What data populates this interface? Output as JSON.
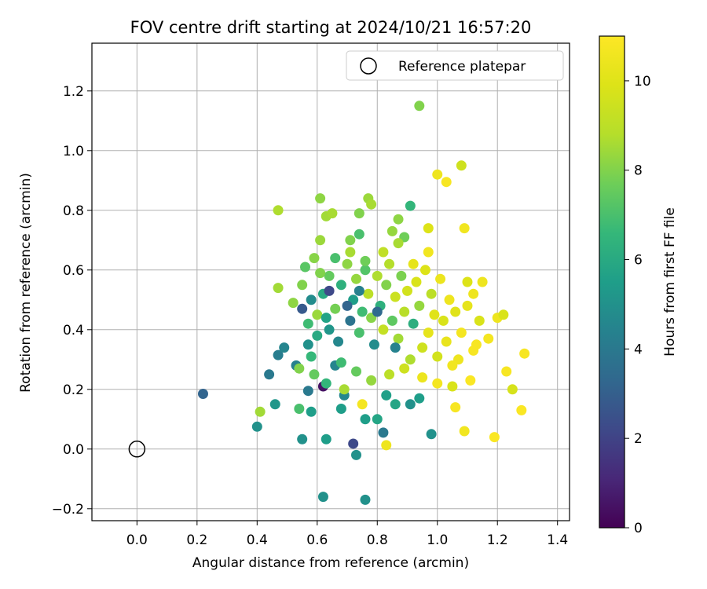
{
  "chart_data": {
    "type": "scatter",
    "title": "FOV centre drift starting at 2024/10/21 16:57:20",
    "xlabel": "Angular distance from reference (arcmin)",
    "ylabel": "Rotation from reference (arcmin)",
    "xlim": [
      -0.15,
      1.44
    ],
    "ylim": [
      -0.24,
      1.36
    ],
    "xticks": [
      0.0,
      0.2,
      0.4,
      0.6,
      0.8,
      1.0,
      1.2,
      1.4
    ],
    "yticks": [
      -0.2,
      0.0,
      0.2,
      0.4,
      0.6,
      0.8,
      1.0,
      1.2
    ],
    "xtick_labels": [
      "0.0",
      "0.2",
      "0.4",
      "0.6",
      "0.8",
      "1.0",
      "1.2",
      "1.4"
    ],
    "ytick_labels": [
      "−0.2",
      "0.0",
      "0.2",
      "0.4",
      "0.6",
      "0.8",
      "1.0",
      "1.2"
    ],
    "grid": true,
    "legend": {
      "position": "top-right",
      "entries": [
        "Reference platepar"
      ]
    },
    "reference_point": {
      "x": 0.0,
      "y": 0.0,
      "label": "Reference platepar"
    },
    "colorbar": {
      "label": "Hours from first FF file",
      "range": [
        0,
        11
      ],
      "ticks": [
        0,
        2,
        4,
        6,
        8,
        10
      ],
      "colormap": "viridis"
    },
    "series": [
      {
        "points": [
          [
            0.22,
            0.185,
            3.2
          ],
          [
            0.4,
            0.075,
            5.0
          ],
          [
            0.41,
            0.125,
            8.5
          ],
          [
            0.44,
            0.25,
            4.0
          ],
          [
            0.46,
            0.15,
            5.2
          ],
          [
            0.47,
            0.315,
            4.2
          ],
          [
            0.49,
            0.34,
            4.5
          ],
          [
            0.47,
            0.54,
            8.5
          ],
          [
            0.47,
            0.8,
            8.7
          ],
          [
            0.53,
            0.28,
            4.3
          ],
          [
            0.54,
            0.135,
            7.0
          ],
          [
            0.54,
            0.27,
            8.0
          ],
          [
            0.55,
            0.033,
            5.0
          ],
          [
            0.57,
            0.195,
            4.0
          ],
          [
            0.58,
            0.125,
            5.5
          ],
          [
            0.57,
            0.35,
            5.0
          ],
          [
            0.59,
            0.25,
            7.5
          ],
          [
            0.6,
            0.38,
            6.0
          ],
          [
            0.61,
            0.84,
            8.2
          ],
          [
            0.61,
            0.7,
            8.4
          ],
          [
            0.62,
            0.21,
            0.5
          ],
          [
            0.63,
            0.22,
            6.5
          ],
          [
            0.63,
            0.033,
            5.5
          ],
          [
            0.62,
            -0.16,
            5.0
          ],
          [
            0.63,
            0.78,
            8.5
          ],
          [
            0.65,
            0.79,
            8.6
          ],
          [
            0.66,
            0.28,
            4.5
          ],
          [
            0.68,
            0.135,
            5.5
          ],
          [
            0.69,
            0.18,
            4.6
          ],
          [
            0.71,
            0.7,
            8.0
          ],
          [
            0.72,
            0.018,
            2.2
          ],
          [
            0.73,
            -0.02,
            5.0
          ],
          [
            0.74,
            0.79,
            8.0
          ],
          [
            0.74,
            0.72,
            7.0
          ],
          [
            0.76,
            0.1,
            5.5
          ],
          [
            0.76,
            -0.17,
            5.0
          ],
          [
            0.77,
            0.84,
            8.4
          ],
          [
            0.78,
            0.82,
            8.6
          ],
          [
            0.8,
            0.1,
            5.8
          ],
          [
            0.82,
            0.055,
            4.0
          ],
          [
            0.83,
            0.013,
            10.5
          ],
          [
            0.83,
            0.18,
            5.6
          ],
          [
            0.85,
            0.73,
            8.3
          ],
          [
            0.86,
            0.15,
            5.8
          ],
          [
            0.87,
            0.77,
            8.2
          ],
          [
            0.89,
            0.71,
            7.7
          ],
          [
            0.91,
            0.815,
            6.5
          ],
          [
            0.91,
            0.15,
            5.0
          ],
          [
            0.94,
            1.15,
            8.0
          ],
          [
            0.94,
            0.17,
            5.5
          ],
          [
            0.97,
            0.74,
            9.9
          ],
          [
            0.98,
            0.05,
            5.0
          ],
          [
            1.0,
            0.92,
            10.5
          ],
          [
            1.03,
            0.895,
            10.8
          ],
          [
            1.08,
            0.95,
            9.5
          ],
          [
            1.09,
            0.74,
            10.6
          ],
          [
            1.07,
            0.3,
            10.5
          ],
          [
            1.09,
            0.06,
            10.6
          ],
          [
            1.13,
            0.35,
            10.8
          ],
          [
            1.14,
            0.43,
            9.8
          ],
          [
            1.17,
            0.37,
            10.7
          ],
          [
            1.19,
            0.04,
            10.9
          ],
          [
            1.2,
            0.44,
            10.5
          ],
          [
            1.22,
            0.45,
            9.8
          ],
          [
            1.23,
            0.26,
            10.8
          ],
          [
            1.25,
            0.2,
            9.7
          ],
          [
            1.28,
            0.13,
            10.9
          ],
          [
            1.29,
            0.32,
            10.8
          ],
          [
            1.15,
            0.56,
            10.5
          ],
          [
            1.11,
            0.23,
            10.9
          ],
          [
            1.06,
            0.14,
            10.8
          ],
          [
            1.1,
            0.56,
            9.9
          ],
          [
            0.52,
            0.49,
            8.2
          ],
          [
            0.55,
            0.55,
            8.0
          ],
          [
            0.57,
            0.42,
            6.8
          ],
          [
            0.58,
            0.5,
            4.8
          ],
          [
            0.6,
            0.45,
            8.4
          ],
          [
            0.62,
            0.52,
            6.0
          ],
          [
            0.64,
            0.58,
            7.5
          ],
          [
            0.64,
            0.4,
            5.2
          ],
          [
            0.66,
            0.47,
            7.8
          ],
          [
            0.67,
            0.36,
            4.6
          ],
          [
            0.68,
            0.55,
            6.3
          ],
          [
            0.7,
            0.62,
            8.2
          ],
          [
            0.71,
            0.43,
            3.8
          ],
          [
            0.72,
            0.5,
            5.5
          ],
          [
            0.73,
            0.57,
            8.3
          ],
          [
            0.74,
            0.39,
            7.0
          ],
          [
            0.75,
            0.46,
            6.8
          ],
          [
            0.76,
            0.6,
            7.2
          ],
          [
            0.77,
            0.52,
            9.0
          ],
          [
            0.78,
            0.44,
            8.1
          ],
          [
            0.79,
            0.35,
            4.8
          ],
          [
            0.8,
            0.58,
            8.7
          ],
          [
            0.81,
            0.48,
            6.3
          ],
          [
            0.82,
            0.4,
            9.2
          ],
          [
            0.83,
            0.55,
            8.0
          ],
          [
            0.84,
            0.62,
            8.8
          ],
          [
            0.85,
            0.43,
            7.4
          ],
          [
            0.86,
            0.51,
            9.4
          ],
          [
            0.87,
            0.37,
            8.5
          ],
          [
            0.88,
            0.58,
            7.9
          ],
          [
            0.89,
            0.46,
            8.9
          ],
          [
            0.9,
            0.53,
            9.6
          ],
          [
            0.91,
            0.3,
            8.7
          ],
          [
            0.92,
            0.42,
            6.2
          ],
          [
            0.93,
            0.56,
            9.8
          ],
          [
            0.94,
            0.48,
            8.3
          ],
          [
            0.95,
            0.34,
            9.5
          ],
          [
            0.96,
            0.6,
            9.9
          ],
          [
            0.97,
            0.39,
            10.2
          ],
          [
            0.98,
            0.52,
            9.0
          ],
          [
            0.99,
            0.45,
            10.0
          ],
          [
            1.0,
            0.31,
            9.6
          ],
          [
            1.01,
            0.57,
            10.4
          ],
          [
            1.02,
            0.43,
            9.8
          ],
          [
            1.03,
            0.36,
            10.3
          ],
          [
            1.04,
            0.5,
            10.5
          ],
          [
            1.05,
            0.28,
            10.6
          ],
          [
            1.06,
            0.46,
            10.0
          ],
          [
            1.08,
            0.39,
            10.7
          ],
          [
            1.1,
            0.48,
            10.2
          ],
          [
            1.12,
            0.33,
            10.8
          ],
          [
            1.12,
            0.52,
            10.5
          ],
          [
            0.61,
            0.59,
            8.0
          ],
          [
            0.66,
            0.64,
            7.0
          ],
          [
            0.71,
            0.66,
            8.6
          ],
          [
            0.76,
            0.63,
            7.7
          ],
          [
            0.82,
            0.66,
            9.1
          ],
          [
            0.87,
            0.69,
            8.6
          ],
          [
            0.92,
            0.62,
            10.2
          ],
          [
            0.97,
            0.66,
            10.6
          ],
          [
            0.56,
            0.61,
            7.3
          ],
          [
            0.59,
            0.64,
            8.1
          ],
          [
            0.68,
            0.29,
            6.8
          ],
          [
            0.73,
            0.26,
            7.5
          ],
          [
            0.78,
            0.23,
            8.3
          ],
          [
            0.84,
            0.25,
            9.0
          ],
          [
            0.89,
            0.27,
            9.5
          ],
          [
            0.95,
            0.24,
            10.4
          ],
          [
            1.0,
            0.22,
            10.7
          ],
          [
            1.05,
            0.21,
            9.8
          ],
          [
            0.69,
            0.2,
            8.6
          ],
          [
            0.75,
            0.15,
            10.7
          ],
          [
            0.7,
            0.48,
            3.2
          ],
          [
            0.74,
            0.53,
            4.3
          ],
          [
            0.8,
            0.46,
            3.4
          ],
          [
            0.64,
            0.53,
            2.2
          ],
          [
            0.55,
            0.47,
            2.8
          ],
          [
            0.86,
            0.34,
            4.4
          ],
          [
            0.63,
            0.44,
            5.7
          ],
          [
            0.58,
            0.31,
            6.6
          ]
        ]
      }
    ]
  }
}
